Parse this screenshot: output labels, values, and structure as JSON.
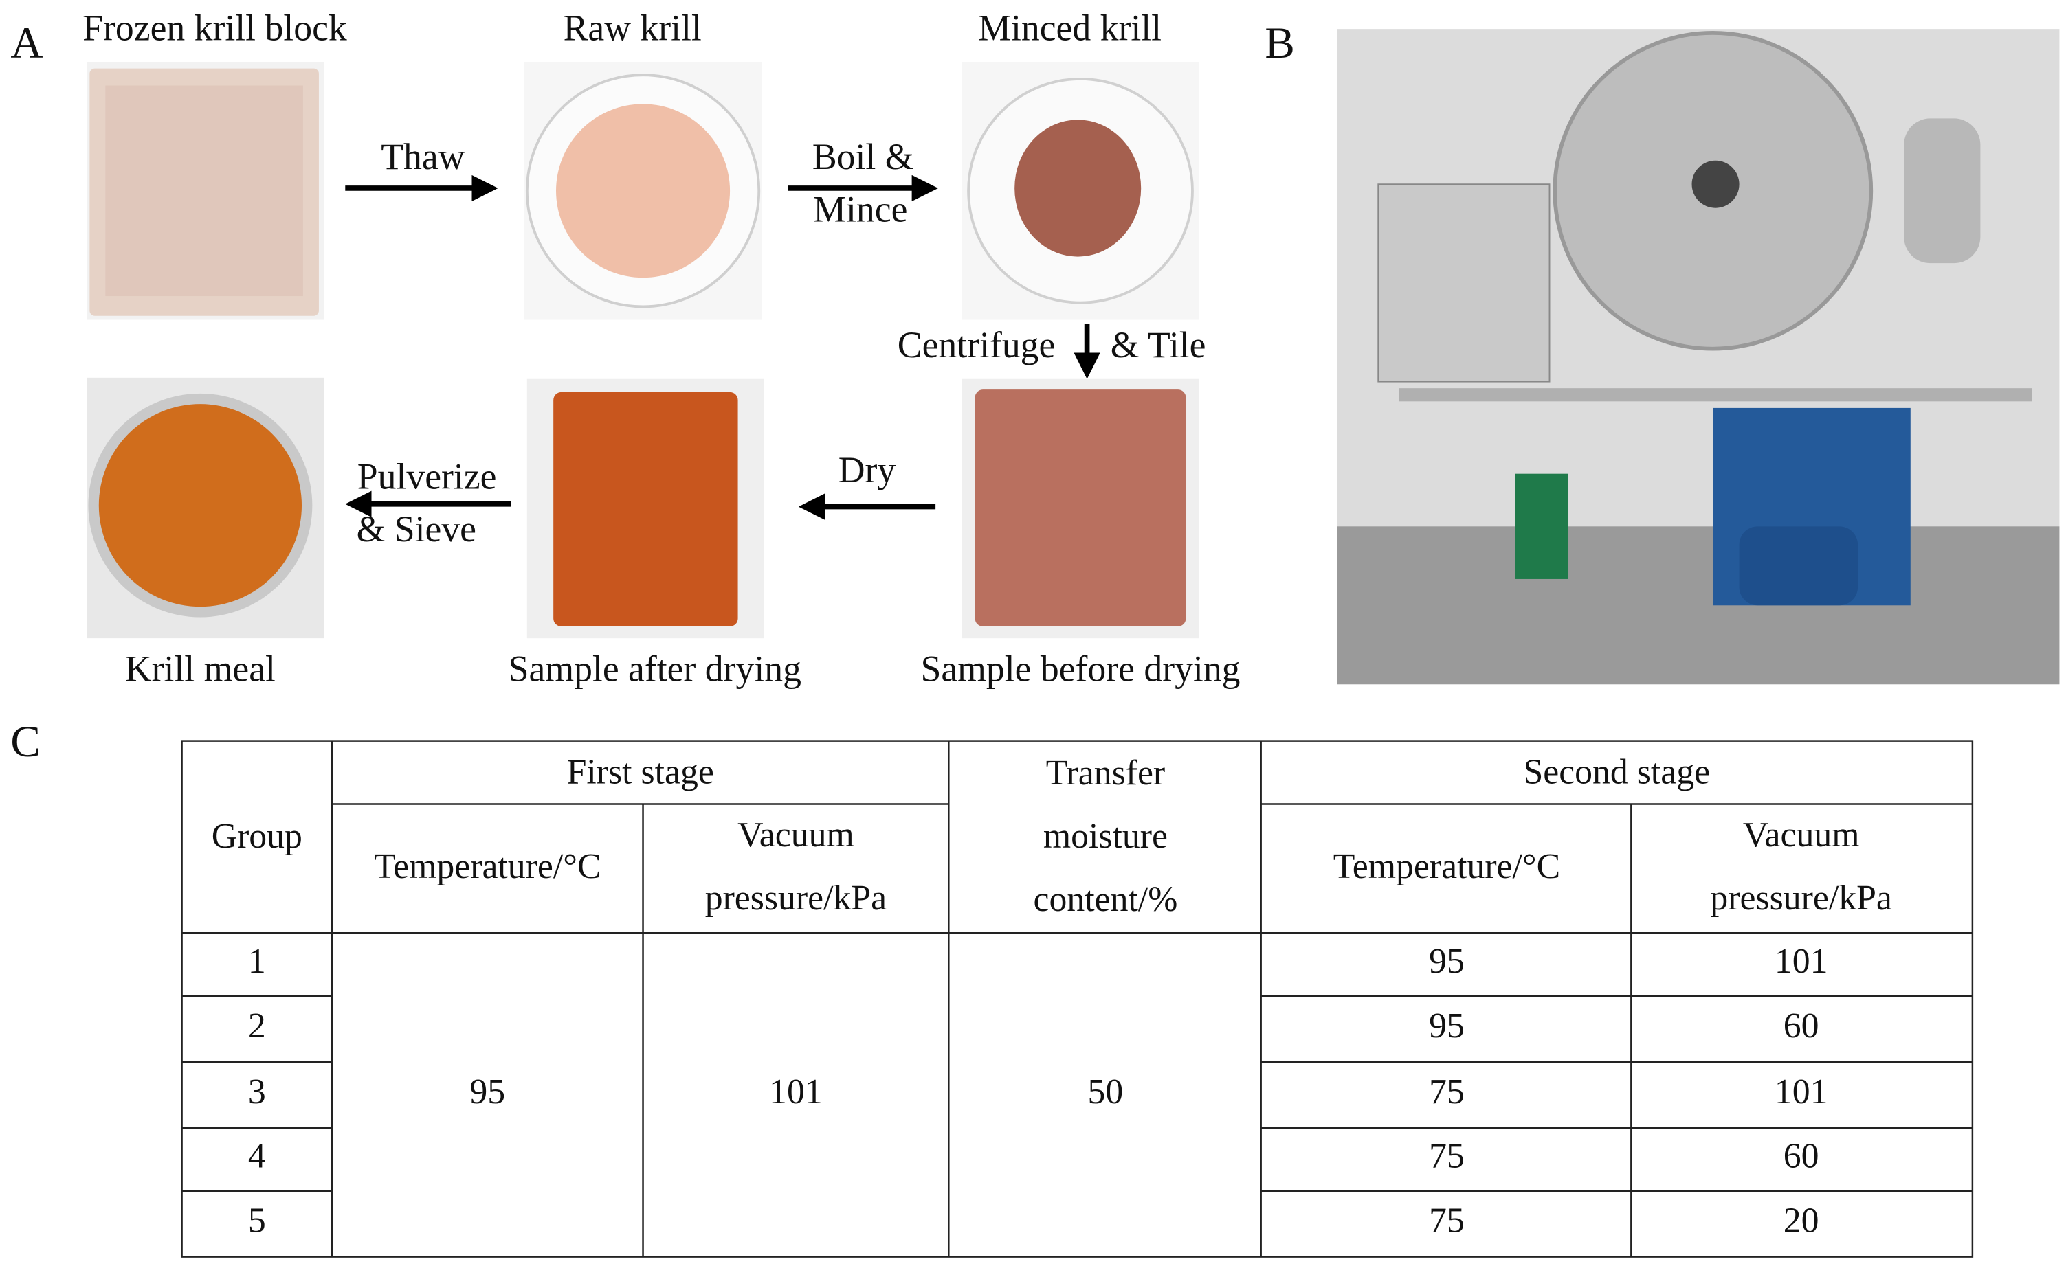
{
  "panel_a": {
    "label": "A",
    "captions": [
      "Frozen krill block",
      "Raw krill",
      "Minced krill",
      "Sample before drying",
      "Sample after drying",
      "Krill meal"
    ],
    "arrows": [
      [
        "Thaw"
      ],
      [
        "Boil &",
        "Mince"
      ],
      [
        "Centrifuge",
        "& Tile"
      ],
      [
        "Dry"
      ],
      [
        "Pulverize",
        "& Sieve"
      ]
    ]
  },
  "panel_b": {
    "label": "B"
  },
  "panel_c": {
    "label": "C",
    "table": {
      "header": {
        "group": "Group",
        "first_stage": "First stage",
        "transfer": [
          "Transfer",
          "moisture",
          "content/%"
        ],
        "second_stage": "Second stage",
        "first_columns": [
          [
            "Temperature/°C"
          ],
          [
            "Vacuum",
            "pressure/kPa"
          ]
        ],
        "second_columns": [
          [
            "Temperature/°C"
          ],
          [
            "Vacuum",
            "pressure/kPa"
          ]
        ]
      },
      "shared": [
        95,
        101,
        50
      ],
      "rows": [
        [
          1,
          95,
          101
        ],
        [
          2,
          95,
          60
        ],
        [
          3,
          75,
          101
        ],
        [
          4,
          75,
          60
        ],
        [
          5,
          75,
          20
        ]
      ]
    }
  }
}
